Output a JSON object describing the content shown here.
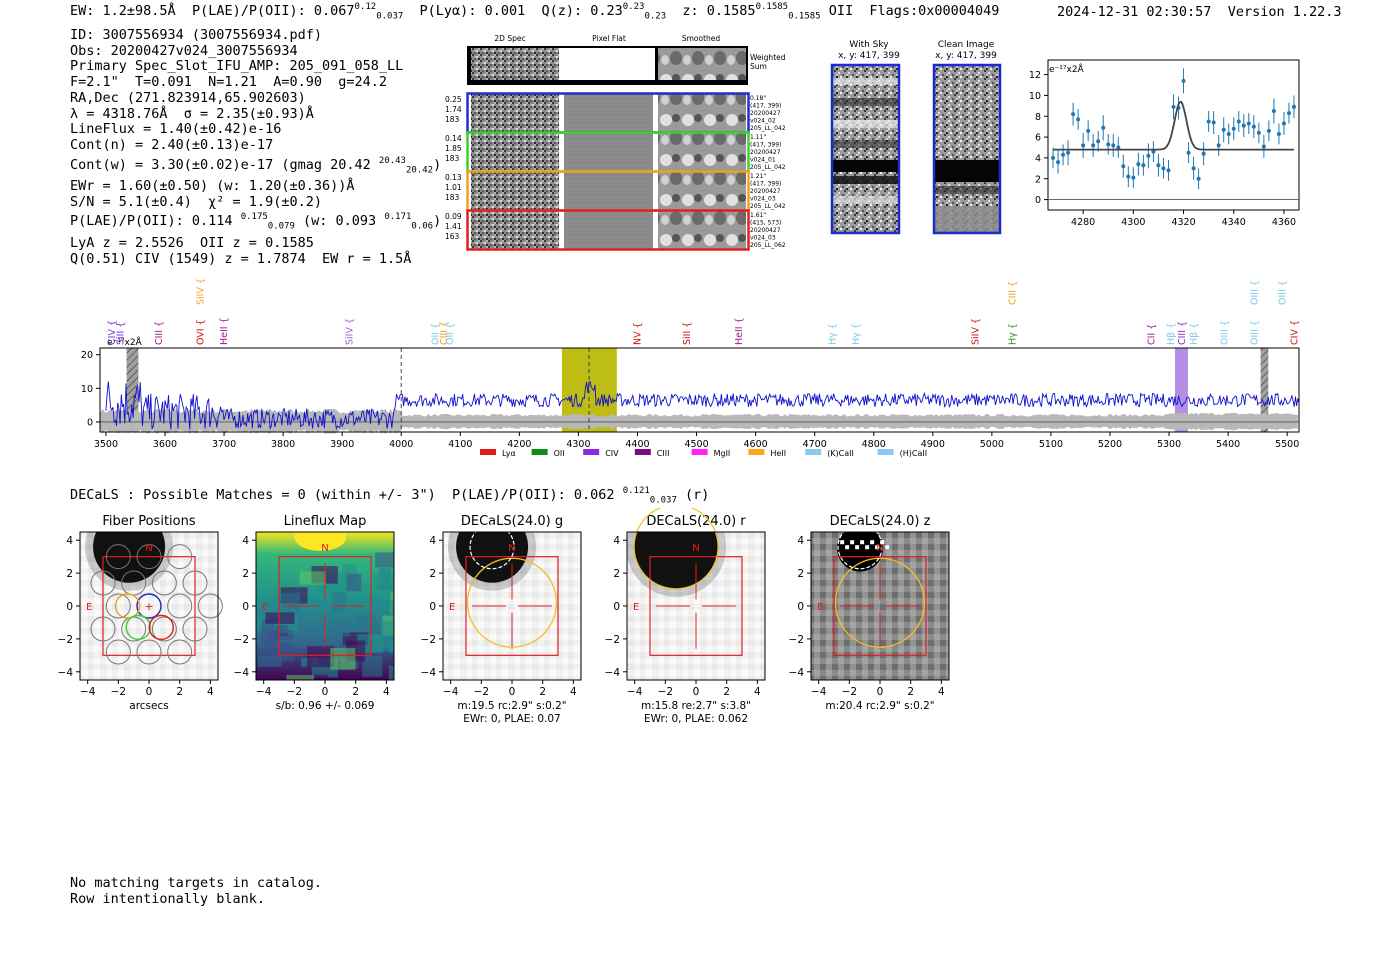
{
  "header": {
    "ew": "EW: 1.2±98.5Å",
    "plae": "P(LAE)/P(OII): 0.067",
    "plae_hi": "0.12",
    "plae_lo": "0.037",
    "plya": "P(Lyα): 0.001",
    "qz": "Q(z): 0.23",
    "qz_hi": "0.23",
    "qz_lo": "0.23",
    "z": "z: 0.1585",
    "z_hi": "0.1585",
    "z_lo": "0.1585",
    "z_line": "OII",
    "flags": "Flags:0x00004049",
    "timestamp": "2024-12-31 02:30:57",
    "version": "Version 1.22.3"
  },
  "info": {
    "id": "ID: 3007556934 (3007556934.pdf)",
    "obs": "Obs: 20200427v024_3007556934",
    "slot": "Primary Spec_Slot_IFU_AMP: 205_091_058_LL",
    "params": "F=2.1\"  T=0.091  N=1.21  A=0.90  g=24.2",
    "radec": "RA,Dec (271.823914,65.902603)",
    "lambda": "λ = 4318.76Å  σ = 2.35(±0.93)Å",
    "lineflux": "LineFlux = 1.40(±0.42)e-16",
    "contn": "Cont(n) = 2.40(±0.13)e-17",
    "contw": "Cont(w) = 3.30(±0.02)e-17 (gmag 20.42",
    "gmag_hi": "20.43",
    "gmag_lo": "20.42",
    "contw_end": ")",
    "ewr": "EWr = 1.60(±0.50) (w: 1.20(±0.36))Å",
    "sn": "S/N = 5.1(±0.4)  χ² = 1.9(±0.2)",
    "plae2": "P(LAE)/P(OII): 0.114",
    "plae2_hi": "0.175",
    "plae2_lo": "0.079",
    "plae2_w": " (w: 0.093",
    "plae2_w_hi": "0.171",
    "plae2_w_lo": "0.06",
    "plae2_end": ")",
    "lya": "LyA z = 2.5526  OII z = 0.1585",
    "civ": "Q(0.51) CIV (1549) z = 1.7874  EW r = 1.5Å"
  },
  "cutouts": {
    "headers": [
      "2D Spec",
      "Pixel Flat",
      "Smoothed"
    ],
    "weighted_label": [
      "Weighted",
      "Sum"
    ],
    "rows": [
      {
        "vals": [
          "0.25",
          "1.74",
          "183"
        ],
        "label": [
          "0.18\"",
          "(417, 399)",
          "20200427",
          "v024_02",
          "205_LL_042"
        ],
        "color": "#1f2ecc"
      },
      {
        "vals": [
          "0.14",
          "1.85",
          "183"
        ],
        "label": [
          "1.11\"",
          "(417, 399)",
          "20200427",
          "v024_01",
          "205_LL_042"
        ],
        "color": "#3dd12a"
      },
      {
        "vals": [
          "0.13",
          "1.01",
          "183"
        ],
        "label": [
          "1.21\"",
          "(417, 399)",
          "20200427",
          "v024_03",
          "205_LL_042"
        ],
        "color": "#f0a020"
      },
      {
        "vals": [
          "0.09",
          "1.41",
          "163"
        ],
        "label": [
          "1.61\"",
          "(415, 573)",
          "20200427",
          "v024_03",
          "205_LL_062"
        ],
        "color": "#e02020"
      }
    ],
    "with_sky": [
      "With Sky",
      "x, y: 417, 399"
    ],
    "clean": [
      "Clean Image",
      "x, y: 417, 399"
    ]
  },
  "fit_chart": {
    "type": "scatter",
    "unit_label": "e⁻¹⁷x2Å",
    "xlim": [
      4266,
      4366
    ],
    "ylim": [
      -1,
      13.4
    ],
    "xticks": [
      4280,
      4300,
      4320,
      4340,
      4360
    ],
    "yticks": [
      0,
      2,
      4,
      6,
      8,
      10,
      12
    ],
    "continuum": 4.8,
    "peak_x": 4318.8,
    "peak_amp": 4.6,
    "sigma": 2.35,
    "points": [
      [
        4268,
        4.0,
        1.0
      ],
      [
        4270,
        3.6,
        1.1
      ],
      [
        4272,
        4.3,
        1.0
      ],
      [
        4274,
        4.5,
        1.2
      ],
      [
        4276,
        8.2,
        1.1
      ],
      [
        4278,
        7.7,
        1.0
      ],
      [
        4280,
        5.2,
        1.2
      ],
      [
        4282,
        6.6,
        1.0
      ],
      [
        4284,
        5.2,
        1.1
      ],
      [
        4286,
        5.6,
        1.0
      ],
      [
        4288,
        6.9,
        1.2
      ],
      [
        4290,
        5.3,
        1.0
      ],
      [
        4292,
        5.2,
        1.1
      ],
      [
        4294,
        5.0,
        1.0
      ],
      [
        4296,
        3.2,
        1.1
      ],
      [
        4298,
        2.2,
        1.0
      ],
      [
        4300,
        2.1,
        1.0
      ],
      [
        4302,
        3.4,
        1.1
      ],
      [
        4304,
        3.3,
        1.0
      ],
      [
        4306,
        4.2,
        1.2
      ],
      [
        4308,
        4.6,
        1.0
      ],
      [
        4310,
        3.3,
        1.1
      ],
      [
        4312,
        3.0,
        1.0
      ],
      [
        4314,
        2.8,
        1.0
      ],
      [
        4316,
        8.9,
        1.2
      ],
      [
        4318,
        8.8,
        1.1
      ],
      [
        4320,
        11.4,
        1.2
      ],
      [
        4322,
        4.5,
        1.0
      ],
      [
        4324,
        3.0,
        1.1
      ],
      [
        4326,
        2.0,
        1.0
      ],
      [
        4328,
        4.4,
        1.1
      ],
      [
        4330,
        7.5,
        1.0
      ],
      [
        4332,
        7.4,
        1.1
      ],
      [
        4334,
        5.2,
        1.0
      ],
      [
        4336,
        6.7,
        1.2
      ],
      [
        4338,
        6.3,
        1.0
      ],
      [
        4340,
        6.8,
        1.1
      ],
      [
        4342,
        7.5,
        1.0
      ],
      [
        4344,
        7.1,
        1.1
      ],
      [
        4346,
        7.3,
        1.0
      ],
      [
        4348,
        7.0,
        1.1
      ],
      [
        4350,
        6.4,
        1.0
      ],
      [
        4352,
        5.1,
        1.1
      ],
      [
        4354,
        6.6,
        1.0
      ],
      [
        4356,
        8.5,
        1.2
      ],
      [
        4358,
        6.3,
        1.0
      ],
      [
        4360,
        7.3,
        1.1
      ],
      [
        4362,
        8.3,
        1.0
      ],
      [
        4364,
        8.9,
        1.1
      ]
    ]
  },
  "spectrum": {
    "type": "line",
    "xlim": [
      3490,
      5520
    ],
    "ylim": [
      -3,
      22
    ],
    "xticks": [
      3500,
      3600,
      3700,
      3800,
      3900,
      4000,
      4100,
      4200,
      4300,
      4400,
      4500,
      4600,
      4700,
      4800,
      4900,
      5000,
      5100,
      5200,
      5300,
      5400,
      5500
    ],
    "yticks": [
      0,
      10,
      20
    ],
    "unit_label": "e⁻¹⁷x2Å",
    "dashed_lines": [
      4000,
      4318
    ],
    "highlights": [
      {
        "x0": 3535,
        "x1": 3555,
        "color": "#a0a0a0",
        "hatch": true
      },
      {
        "x0": 4272,
        "x1": 4365,
        "color": "#bdbd14",
        "hatch": false
      },
      {
        "x0": 5310,
        "x1": 5332,
        "color": "#b58ee6",
        "hatch": false
      },
      {
        "x0": 5455,
        "x1": 5468,
        "color": "#a0a0a0",
        "hatch": true
      }
    ],
    "lines": [
      {
        "name": "CIV",
        "x": 3510,
        "color": "#7a2ad6",
        "row": 2
      },
      {
        "name": "SiII",
        "x": 3525,
        "color": "#7a2ad6",
        "row": 2
      },
      {
        "name": "CIII",
        "x": 3590,
        "color": "#a0148c",
        "row": 2
      },
      {
        "name": "SiIV",
        "x": 3660,
        "color": "#f0a020",
        "row": 1
      },
      {
        "name": "OVI",
        "x": 3660,
        "color": "#cc1010",
        "row": 2
      },
      {
        "name": "HeII",
        "x": 3700,
        "color": "#a0148c",
        "row": 2
      },
      {
        "name": "SiIV",
        "x": 3912,
        "color": "#9a60d8",
        "row": 2
      },
      {
        "name": "OII",
        "x": 4058,
        "color": "#7fc8e8",
        "row": 2
      },
      {
        "name": "CIII",
        "x": 4072,
        "color": "#f0a020",
        "row": 2
      },
      {
        "name": "OII",
        "x": 4083,
        "color": "#7fc8e8",
        "row": 2
      },
      {
        "name": "NV",
        "x": 4400,
        "color": "#cc1010",
        "row": 2
      },
      {
        "name": "SiII",
        "x": 4484,
        "color": "#cc1010",
        "row": 2
      },
      {
        "name": "HeII",
        "x": 4572,
        "color": "#a0148c",
        "row": 2
      },
      {
        "name": "Hγ",
        "x": 4730,
        "color": "#7fc8e8",
        "row": 2
      },
      {
        "name": "Hγ",
        "x": 4770,
        "color": "#7fc8e8",
        "row": 2
      },
      {
        "name": "SiIV",
        "x": 4972,
        "color": "#cc1010",
        "row": 2
      },
      {
        "name": "CIII",
        "x": 5035,
        "color": "#f0a020",
        "row": 1
      },
      {
        "name": "Hγ",
        "x": 5035,
        "color": "#2a9a2a",
        "row": 2
      },
      {
        "name": "CII",
        "x": 5270,
        "color": "#a0148c",
        "row": 2
      },
      {
        "name": "Hβ",
        "x": 5303,
        "color": "#7fc8e8",
        "row": 2
      },
      {
        "name": "CIII",
        "x": 5322,
        "color": "#7a2ad6",
        "row": 2
      },
      {
        "name": "Hβ",
        "x": 5342,
        "color": "#7fc8e8",
        "row": 2
      },
      {
        "name": "OIII",
        "x": 5394,
        "color": "#7fc8e8",
        "row": 2
      },
      {
        "name": "OIII",
        "x": 5445,
        "color": "#7fc8e8",
        "row": 1
      },
      {
        "name": "OIII",
        "x": 5445,
        "color": "#7fc8e8",
        "row": 2
      },
      {
        "name": "OIII",
        "x": 5492,
        "color": "#7fc8e8",
        "row": 1
      },
      {
        "name": "CIV",
        "x": 5512,
        "color": "#cc1010",
        "row": 2
      }
    ],
    "legend": [
      {
        "name": "Lyα",
        "color": "#e41a1c"
      },
      {
        "name": "OII",
        "color": "#138a13"
      },
      {
        "name": "CIV",
        "color": "#8a2be2"
      },
      {
        "name": "CIII",
        "color": "#800a80"
      },
      {
        "name": "MgII",
        "color": "#ff20ff"
      },
      {
        "name": "HeII",
        "color": "#ffa520"
      },
      {
        "name": "(K)CaII",
        "color": "#8cc8f0"
      },
      {
        "name": "(H)CaII",
        "color": "#8cc8f0"
      }
    ]
  },
  "decals": {
    "line": "DECaLS : Possible Matches = 0 (within +/- 3\")  P(LAE)/P(OII): 0.062",
    "hi": "0.121",
    "lo": "0.037",
    "band": " (r)"
  },
  "thumbs": [
    {
      "title": "Fiber Positions",
      "cap1": "arcsecs",
      "cap2": ""
    },
    {
      "title": "Lineflux Map",
      "cap1": "s/b: 0.96 +/- 0.069",
      "cap2": ""
    },
    {
      "title": "DECaLS(24.0) g",
      "cap1": "m:19.5 rc:2.9\"  s:0.2\"",
      "cap2": "EWr: 0, PLAE: 0.07"
    },
    {
      "title": "DECaLS(24.0) r",
      "cap1": "m:15.8  re:2.7\"  s:3.8\"",
      "cap2": "EWr: 0, PLAE: 0.062"
    },
    {
      "title": "DECaLS(24.0) z",
      "cap1": "m:20.4 rc:2.9\"  s:0.2\"",
      "cap2": ""
    }
  ],
  "thumb_axes": {
    "ticks": [
      "−4",
      "−2",
      "0",
      "2",
      "4"
    ],
    "n_label": "N",
    "e_label": "E"
  },
  "footer": {
    "line1": "No matching targets in catalog.",
    "line2": "Row intentionally blank."
  }
}
